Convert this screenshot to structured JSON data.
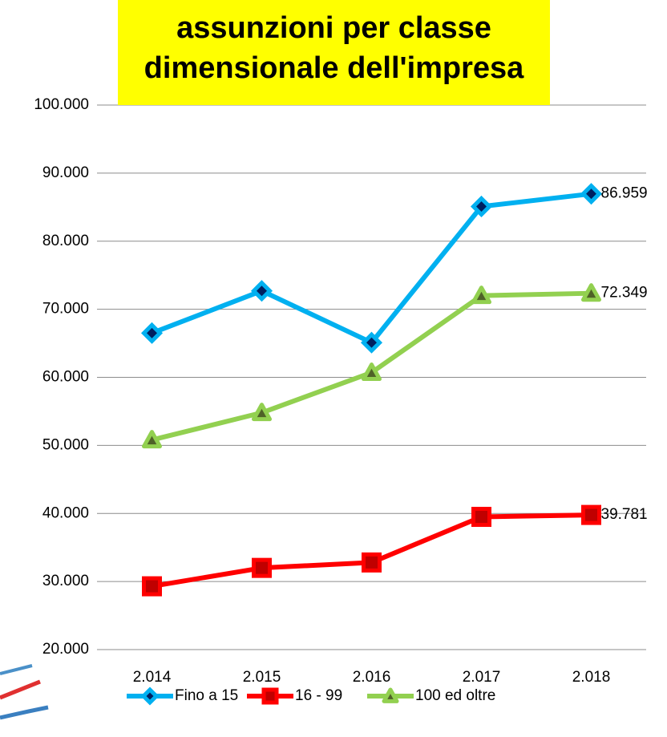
{
  "chart_data": {
    "type": "line",
    "title": "assunzioni per classe dimensionale dell'impresa",
    "categories": [
      "2.014",
      "2.015",
      "2.016",
      "2.017",
      "2.018"
    ],
    "series": [
      {
        "name": "Fino a 15",
        "color": "#00b0f0",
        "marker": "diamond",
        "values": [
          66500,
          72700,
          65100,
          85100,
          86959
        ],
        "value_labels": [
          null,
          null,
          null,
          null,
          "86.959"
        ]
      },
      {
        "name": "16 - 99",
        "color": "#ff0000",
        "marker": "square",
        "values": [
          29300,
          32000,
          32800,
          39500,
          39781
        ],
        "value_labels": [
          null,
          null,
          null,
          null,
          "39.781"
        ]
      },
      {
        "name": "100 ed oltre",
        "color": "#92d050",
        "marker": "triangle",
        "values": [
          50800,
          54800,
          60700,
          72000,
          72349
        ],
        "value_labels": [
          null,
          null,
          null,
          null,
          "72.349"
        ]
      }
    ],
    "ylim": [
      20000,
      100000
    ],
    "yticks": [
      {
        "value": 20000,
        "label": "20.000"
      },
      {
        "value": 30000,
        "label": "30.000"
      },
      {
        "value": 40000,
        "label": "40.000"
      },
      {
        "value": 50000,
        "label": "50.000"
      },
      {
        "value": 60000,
        "label": "60.000"
      },
      {
        "value": 70000,
        "label": "70.000"
      },
      {
        "value": 80000,
        "label": "80.000"
      },
      {
        "value": 90000,
        "label": "90.000"
      },
      {
        "value": 100000,
        "label": "100.000"
      }
    ],
    "grid": true,
    "legend": "bottom"
  }
}
